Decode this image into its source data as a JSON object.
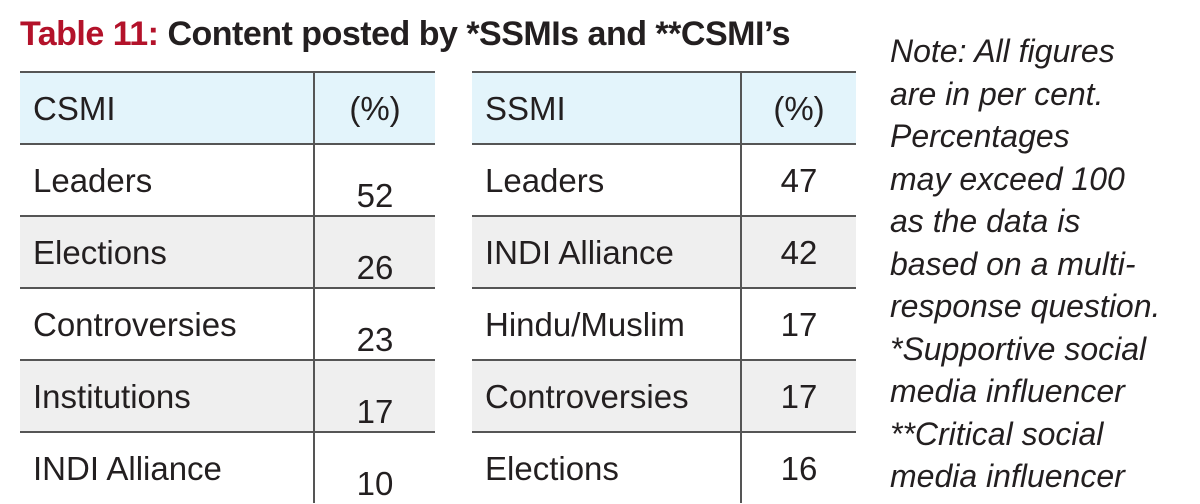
{
  "title": {
    "label": "Table 11:",
    "text": " Content posted by *SSMIs and **CSMI’s"
  },
  "chart_data": [
    {
      "type": "table",
      "columns": [
        "CSMI",
        "(%)"
      ],
      "rows": [
        {
          "category": "Leaders",
          "value": "52"
        },
        {
          "category": "Elections",
          "value": "26"
        },
        {
          "category": "Controversies",
          "value": "23"
        },
        {
          "category": "Institutions",
          "value": "17"
        },
        {
          "category": "INDI Alliance",
          "value": "10"
        }
      ]
    },
    {
      "type": "table",
      "columns": [
        "SSMI",
        "(%)"
      ],
      "rows": [
        {
          "category": "Leaders",
          "value": "47"
        },
        {
          "category": "INDI Alliance",
          "value": "42"
        },
        {
          "category": "Hindu/Muslim",
          "value": "17"
        },
        {
          "category": "Controversies",
          "value": "17"
        },
        {
          "category": "Elections",
          "value": "16"
        }
      ]
    }
  ],
  "note": {
    "lines": [
      "Note: All figures",
      "are in per cent.",
      "Percentages",
      "may exceed 100",
      "as the data is",
      "based on a multi-",
      "response question.",
      "*Supportive social",
      "media influencer",
      "**Critical social",
      "media influencer"
    ]
  },
  "colors": {
    "title_label": "#b3122a",
    "header_bg": "#e3f4fb",
    "shaded_row_bg": "#efefef",
    "rule": "#555555"
  }
}
